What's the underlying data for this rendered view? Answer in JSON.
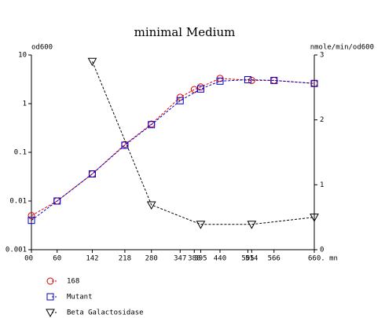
{
  "chart_data": {
    "type": "line",
    "title": "minimal Medium",
    "y_label": "od600",
    "y2_label": "nmole/min/od600",
    "ylog": true,
    "ylim": [
      0.001,
      10
    ],
    "yticks": [
      0.001,
      0.01,
      0.1,
      1,
      10
    ],
    "y2lim": [
      0,
      3
    ],
    "y2ticks": [
      0,
      1,
      2,
      3
    ],
    "xlim": [
      0,
      660
    ],
    "xticks": [
      {
        "value": 0,
        "label": "00"
      },
      60,
      142,
      218,
      280,
      347,
      380,
      395,
      440,
      505,
      514,
      566,
      {
        "value": 660,
        "label": "660. mn"
      }
    ],
    "series": [
      {
        "name": "168",
        "color": "#dd0000",
        "marker": "circle",
        "x": [
          0,
          60,
          142,
          218,
          280,
          347,
          380,
          395,
          440,
          514,
          566,
          660
        ],
        "values": [
          0.005,
          0.01,
          0.036,
          0.145,
          0.38,
          1.35,
          1.95,
          2.2,
          3.3,
          3.0,
          3.0,
          2.6
        ]
      },
      {
        "name": "Mutant",
        "color": "#0000cc",
        "marker": "square",
        "x": [
          0,
          60,
          142,
          218,
          280,
          347,
          395,
          440,
          505,
          566,
          660
        ],
        "values": [
          0.004,
          0.01,
          0.036,
          0.14,
          0.37,
          1.15,
          2.0,
          2.9,
          3.1,
          3.0,
          2.6
        ]
      },
      {
        "name": "Beta Galactosidase",
        "color": "#000000",
        "marker": "triangle",
        "axis": "y2",
        "x": [
          142,
          280,
          395,
          514,
          660
        ],
        "values": [
          2.9,
          0.69,
          0.39,
          0.39,
          0.5
        ]
      }
    ]
  }
}
